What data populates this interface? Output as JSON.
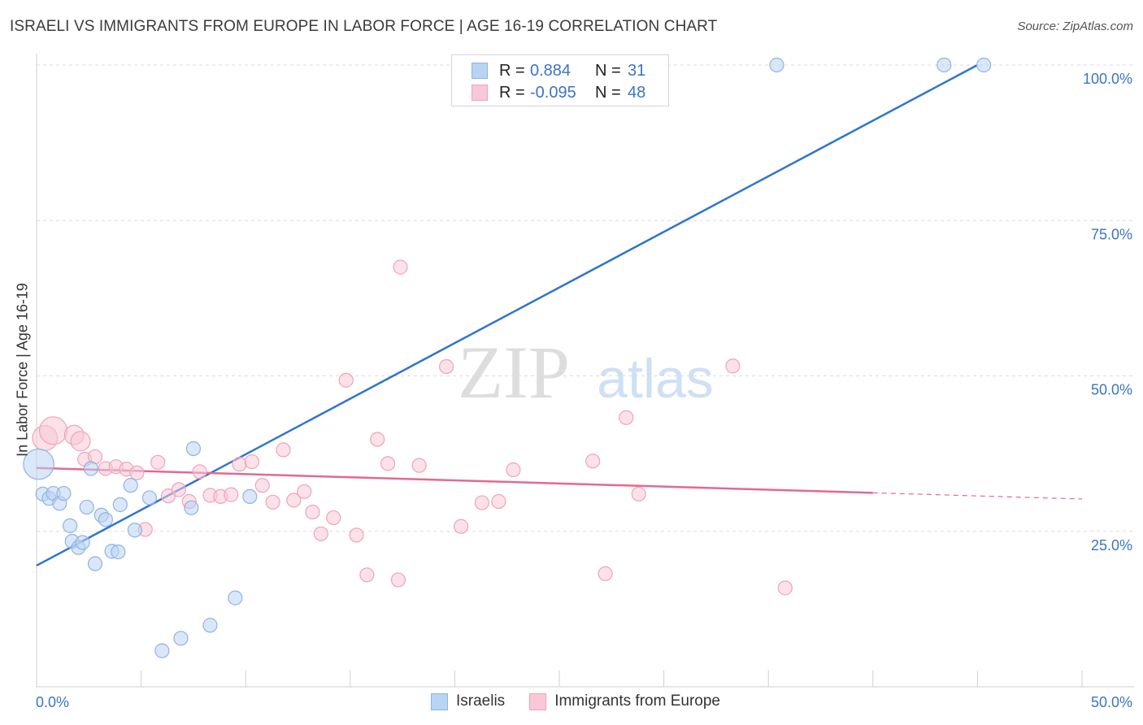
{
  "title": "ISRAELI VS IMMIGRANTS FROM EUROPE IN LABOR FORCE | AGE 16-19 CORRELATION CHART",
  "source": "Source: ZipAtlas.com",
  "watermark": {
    "zip": "ZIP",
    "atlas": "atlas"
  },
  "legend_top": [
    {
      "r_label": "R =",
      "r_value": "0.884",
      "n_label": "N =",
      "n_value": "31"
    },
    {
      "r_label": "R =",
      "r_value": "-0.095",
      "n_label": "N =",
      "n_value": "48"
    }
  ],
  "legend_bottom": [
    {
      "label": "Israelis"
    },
    {
      "label": "Immigrants from Europe"
    }
  ],
  "colors": {
    "blue_fill": "#b9d3f3",
    "blue_stroke": "#8fb3e6",
    "blue_line": "#2f74cf",
    "pink_fill": "#f8c8d6",
    "pink_stroke": "#efa3ba",
    "pink_line": "#e4698f",
    "tick_text": "#3a74c7",
    "grid": "#dcdcdc"
  },
  "chart_data": {
    "type": "scatter",
    "title": "ISRAELI VS IMMIGRANTS FROM EUROPE IN LABOR FORCE | AGE 16-19 CORRELATION CHART",
    "xlabel": "",
    "ylabel": "In Labor Force | Age 16-19",
    "xlim": [
      0,
      50
    ],
    "ylim": [
      0,
      100
    ],
    "x_tick_labels": [
      "0.0%",
      "50.0%"
    ],
    "y_ticks": [
      25,
      50,
      75,
      100
    ],
    "y_tick_labels": [
      "25.0%",
      "50.0%",
      "75.0%",
      "100.0%"
    ],
    "series": [
      {
        "name": "Israelis",
        "r": 0.884,
        "n": 31,
        "trend": {
          "x": [
            0,
            45
          ],
          "y": [
            19.5,
            100
          ]
        },
        "points": [
          {
            "x": 0.1,
            "y": 35.8,
            "s": 2.2
          },
          {
            "x": 0.3,
            "y": 31.0
          },
          {
            "x": 0.6,
            "y": 30.3
          },
          {
            "x": 0.8,
            "y": 31.1
          },
          {
            "x": 1.1,
            "y": 29.5
          },
          {
            "x": 1.3,
            "y": 31.1
          },
          {
            "x": 1.6,
            "y": 25.9
          },
          {
            "x": 1.7,
            "y": 23.4
          },
          {
            "x": 2.0,
            "y": 22.4
          },
          {
            "x": 2.2,
            "y": 23.2
          },
          {
            "x": 2.4,
            "y": 28.9
          },
          {
            "x": 2.6,
            "y": 35.1
          },
          {
            "x": 2.8,
            "y": 19.8
          },
          {
            "x": 3.1,
            "y": 27.6
          },
          {
            "x": 3.3,
            "y": 26.9
          },
          {
            "x": 3.6,
            "y": 21.8
          },
          {
            "x": 3.9,
            "y": 21.7
          },
          {
            "x": 4.0,
            "y": 29.3
          },
          {
            "x": 4.5,
            "y": 32.4
          },
          {
            "x": 4.7,
            "y": 25.2
          },
          {
            "x": 5.4,
            "y": 30.4
          },
          {
            "x": 6.0,
            "y": 5.8
          },
          {
            "x": 6.9,
            "y": 7.8
          },
          {
            "x": 7.4,
            "y": 28.8
          },
          {
            "x": 7.5,
            "y": 38.3
          },
          {
            "x": 8.3,
            "y": 9.9
          },
          {
            "x": 9.5,
            "y": 14.3
          },
          {
            "x": 10.2,
            "y": 30.6
          },
          {
            "x": 35.4,
            "y": 100
          },
          {
            "x": 43.4,
            "y": 100
          },
          {
            "x": 45.3,
            "y": 100
          }
        ]
      },
      {
        "name": "Immigrants from Europe",
        "r": -0.095,
        "n": 48,
        "trend": {
          "x": [
            0,
            40
          ],
          "y": [
            35.2,
            31.2
          ]
        },
        "trend_dashed": {
          "x": [
            40,
            50
          ],
          "y": [
            31.2,
            30.2
          ]
        },
        "points": [
          {
            "x": 0.4,
            "y": 40.0,
            "s": 1.8
          },
          {
            "x": 0.8,
            "y": 41.2,
            "s": 2.0
          },
          {
            "x": 1.8,
            "y": 40.5,
            "s": 1.4
          },
          {
            "x": 2.1,
            "y": 39.5,
            "s": 1.4
          },
          {
            "x": 2.3,
            "y": 36.6
          },
          {
            "x": 2.8,
            "y": 37.0
          },
          {
            "x": 3.3,
            "y": 35.1
          },
          {
            "x": 3.8,
            "y": 35.4
          },
          {
            "x": 4.3,
            "y": 35.0
          },
          {
            "x": 4.8,
            "y": 34.4
          },
          {
            "x": 5.2,
            "y": 25.3
          },
          {
            "x": 5.8,
            "y": 36.1
          },
          {
            "x": 6.3,
            "y": 30.7
          },
          {
            "x": 6.8,
            "y": 31.7
          },
          {
            "x": 7.3,
            "y": 29.8
          },
          {
            "x": 7.8,
            "y": 34.6
          },
          {
            "x": 8.3,
            "y": 30.8
          },
          {
            "x": 8.8,
            "y": 30.6
          },
          {
            "x": 9.3,
            "y": 30.9
          },
          {
            "x": 9.7,
            "y": 35.8
          },
          {
            "x": 10.3,
            "y": 36.2
          },
          {
            "x": 10.8,
            "y": 32.4
          },
          {
            "x": 11.3,
            "y": 29.7
          },
          {
            "x": 11.8,
            "y": 38.1
          },
          {
            "x": 12.3,
            "y": 30.0
          },
          {
            "x": 12.8,
            "y": 31.4
          },
          {
            "x": 13.2,
            "y": 28.1
          },
          {
            "x": 13.6,
            "y": 24.6
          },
          {
            "x": 14.2,
            "y": 27.2
          },
          {
            "x": 14.8,
            "y": 49.3
          },
          {
            "x": 15.3,
            "y": 24.4
          },
          {
            "x": 15.8,
            "y": 18.0
          },
          {
            "x": 16.3,
            "y": 39.8
          },
          {
            "x": 16.8,
            "y": 35.9
          },
          {
            "x": 17.3,
            "y": 17.2
          },
          {
            "x": 17.4,
            "y": 67.5
          },
          {
            "x": 18.3,
            "y": 35.6
          },
          {
            "x": 19.6,
            "y": 51.5
          },
          {
            "x": 20.3,
            "y": 25.8
          },
          {
            "x": 21.3,
            "y": 29.6
          },
          {
            "x": 22.1,
            "y": 29.8
          },
          {
            "x": 22.8,
            "y": 34.9
          },
          {
            "x": 26.6,
            "y": 36.3
          },
          {
            "x": 27.2,
            "y": 18.2
          },
          {
            "x": 28.2,
            "y": 43.3
          },
          {
            "x": 28.8,
            "y": 31.0
          },
          {
            "x": 33.3,
            "y": 51.6
          },
          {
            "x": 35.8,
            "y": 15.9
          }
        ]
      }
    ]
  }
}
